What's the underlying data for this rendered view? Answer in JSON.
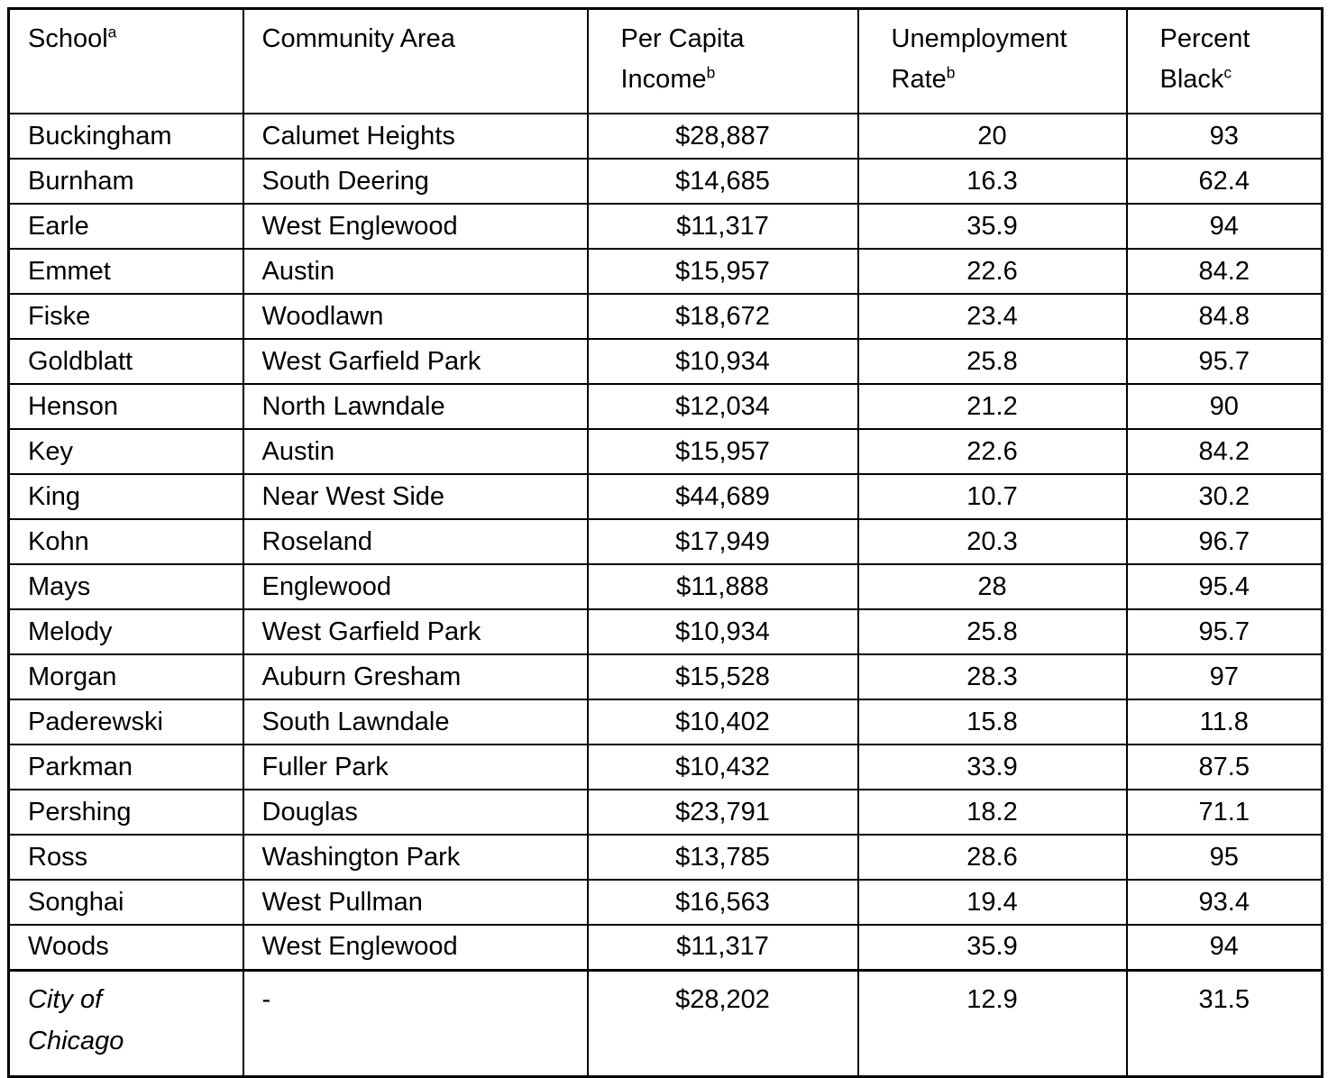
{
  "colors": {
    "background": "#ffffff",
    "text": "#000000",
    "border": "#000000"
  },
  "table": {
    "columns": [
      {
        "key": "school",
        "lines": [
          "School"
        ],
        "sup": "a",
        "align": "left"
      },
      {
        "key": "community-area",
        "lines": [
          "Community Area"
        ],
        "sup": "",
        "align": "left"
      },
      {
        "key": "per-capita-income",
        "lines": [
          "Per Capita",
          "Income"
        ],
        "sup": "b",
        "align": "center"
      },
      {
        "key": "unemployment-rate",
        "lines": [
          "Unemployment",
          "Rate"
        ],
        "sup": "b",
        "align": "center"
      },
      {
        "key": "percent-black",
        "lines": [
          "Percent",
          "Black"
        ],
        "sup": "c",
        "align": "center"
      }
    ],
    "rows": [
      [
        "Buckingham",
        "Calumet Heights",
        "$28,887",
        "20",
        "93"
      ],
      [
        "Burnham",
        "South Deering",
        "$14,685",
        "16.3",
        "62.4"
      ],
      [
        "Earle",
        "West Englewood",
        "$11,317",
        "35.9",
        "94"
      ],
      [
        "Emmet",
        "Austin",
        "$15,957",
        "22.6",
        "84.2"
      ],
      [
        "Fiske",
        "Woodlawn",
        "$18,672",
        "23.4",
        "84.8"
      ],
      [
        "Goldblatt",
        "West Garfield Park",
        "$10,934",
        "25.8",
        "95.7"
      ],
      [
        "Henson",
        "North Lawndale",
        "$12,034",
        "21.2",
        "90"
      ],
      [
        "Key",
        "Austin",
        "$15,957",
        "22.6",
        "84.2"
      ],
      [
        "King",
        "Near West Side",
        "$44,689",
        "10.7",
        "30.2"
      ],
      [
        "Kohn",
        "Roseland",
        "$17,949",
        "20.3",
        "96.7"
      ],
      [
        "Mays",
        "Englewood",
        "$11,888",
        "28",
        "95.4"
      ],
      [
        "Melody",
        "West Garfield Park",
        "$10,934",
        "25.8",
        "95.7"
      ],
      [
        "Morgan",
        "Auburn Gresham",
        "$15,528",
        "28.3",
        "97"
      ],
      [
        "Paderewski",
        "South Lawndale",
        "$10,402",
        "15.8",
        "11.8"
      ],
      [
        "Parkman",
        "Fuller Park",
        "$10,432",
        "33.9",
        "87.5"
      ],
      [
        "Pershing",
        "Douglas",
        "$23,791",
        "18.2",
        "71.1"
      ],
      [
        "Ross",
        "Washington Park",
        "$13,785",
        "28.6",
        "95"
      ],
      [
        "Songhai",
        "West Pullman",
        "$16,563",
        "19.4",
        "93.4"
      ],
      [
        "Woods",
        "West Englewood",
        "$11,317",
        "35.9",
        "94"
      ]
    ],
    "total_row": {
      "cells": [
        "City of Chicago",
        "-",
        "$28,202",
        "12.9",
        "31.5"
      ],
      "first_cell_italic": true
    }
  }
}
